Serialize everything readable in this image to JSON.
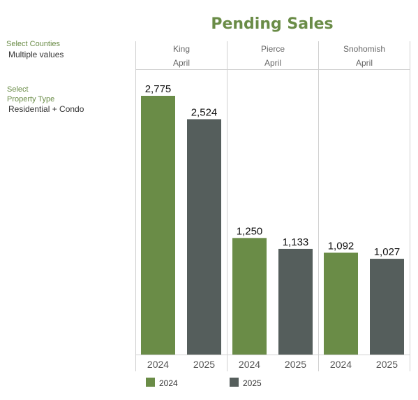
{
  "title": "Pending Sales",
  "filters": {
    "counties_label": "Select Counties",
    "counties_value": "Multiple values",
    "type_label_line1": "Select",
    "type_label_line2": "Property Type",
    "type_value": "Residential + Condo"
  },
  "colors": {
    "y2024": "#6a8c47",
    "y2025": "#555e5c"
  },
  "chart_data": {
    "type": "bar",
    "title": "Pending Sales",
    "month": "April",
    "categories": [
      "King",
      "Pierce",
      "Snohomish"
    ],
    "column_header_month": [
      "April",
      "April",
      "April"
    ],
    "x_ticks": [
      "2024",
      "2025"
    ],
    "series": [
      {
        "name": "2024",
        "values": [
          2775,
          1250,
          1092
        ],
        "labels": [
          "2,775",
          "1,250",
          "1,092"
        ]
      },
      {
        "name": "2025",
        "values": [
          2524,
          1133,
          1027
        ],
        "labels": [
          "2,524",
          "1,133",
          "1,027"
        ]
      }
    ],
    "ylim": [
      0,
      2900
    ],
    "grid": false,
    "legend": "bottom"
  }
}
